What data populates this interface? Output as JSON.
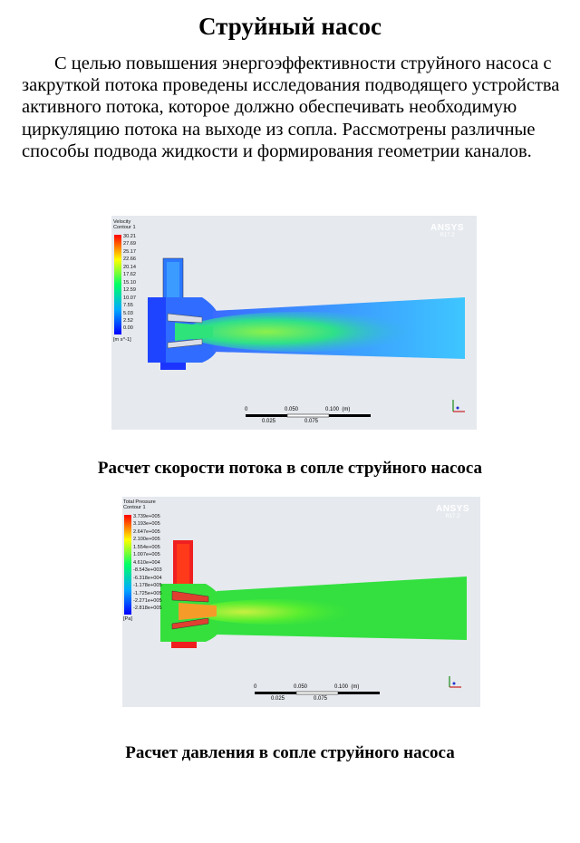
{
  "title": "Струйный насос",
  "paragraph": "С целью повышения энергоэффективности струйного насоса с закруткой потока проведены исследования подводящего устройства активного потока, которое должно обеспечивать  необходимую циркуляцию потока на выходе из сопла. Рассмотрены различные способы подвода жидкости и формирования геометрии каналов.",
  "figure1": {
    "legend_title": [
      "Velocity",
      "Contour 1"
    ],
    "legend_values": [
      "30.21",
      "27.69",
      "25.17",
      "22.66",
      "20.14",
      "17.62",
      "15.10",
      "12.59",
      "10.07",
      "7.55",
      "5.03",
      "2.52",
      "0.00"
    ],
    "legend_unit": "[m s^-1]",
    "brand": "ANSYS",
    "version": "R17.2",
    "scale_top": [
      "0",
      "0.050",
      "0.100  (m)"
    ],
    "scale_bottom": [
      "0.025",
      "0.075"
    ],
    "caption": "Расчет скорости потока в сопле струйного насоса"
  },
  "figure2": {
    "legend_title": [
      "Total Pressure",
      "Contour 1"
    ],
    "legend_values": [
      "3.739e+005",
      "3.193e+005",
      "2.647e+005",
      "2.100e+005",
      "1.554e+005",
      "1.007e+005",
      "4.610e+004",
      "-8.543e+003",
      "-6.318e+004",
      "-1.178e+005",
      "-1.725e+005",
      "-2.271e+005",
      "-2.818e+005"
    ],
    "legend_unit": "[Pa]",
    "brand": "ANSYS",
    "version": "R17.2",
    "scale_top": [
      "0",
      "0.050",
      "0.100  (m)"
    ],
    "scale_bottom": [
      "0.025",
      "0.075"
    ],
    "caption": "Расчет давления в сопле струйного насоса"
  },
  "colors": {
    "figure_background": "#e6e9ee",
    "contour_low": "#1e3cff",
    "contour_mid": "#22dd44",
    "contour_high": "#ff2020"
  }
}
